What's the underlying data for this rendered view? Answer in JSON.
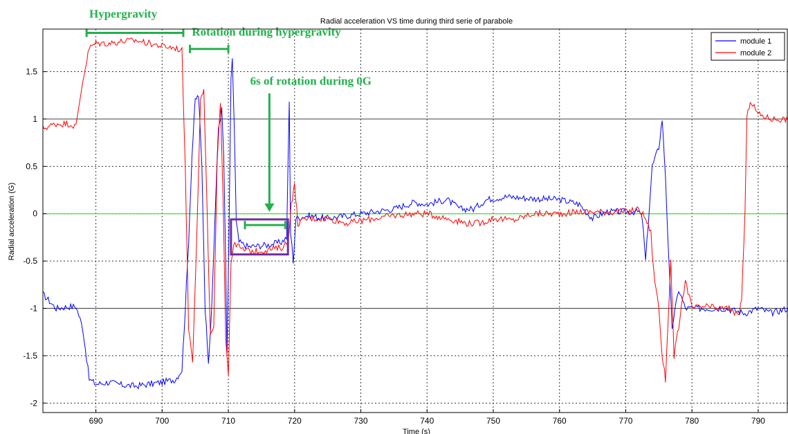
{
  "chart_data": {
    "type": "line",
    "title": "Radial acceleration VS time during third serie of parabole",
    "xlabel": "Time (s)",
    "ylabel": "Radial acceleration (G)",
    "xlim": [
      682,
      794.5
    ],
    "ylim": [
      -2.1,
      1.95
    ],
    "xticks": [
      690,
      700,
      710,
      720,
      730,
      740,
      750,
      760,
      770,
      780,
      790
    ],
    "yticks": [
      -2,
      -1.5,
      -1,
      -0.5,
      0,
      0.5,
      1,
      1.5
    ],
    "grid": true,
    "legend_position": "top-right",
    "reference_lines": [
      {
        "y": 0,
        "color": "#33ee33"
      },
      {
        "y": 1,
        "color": "#555555"
      },
      {
        "y": -1,
        "color": "#555555"
      }
    ],
    "series": [
      {
        "name": "module 1",
        "color": "#0000ff",
        "points": [
          [
            682,
            -0.85
          ],
          [
            684,
            -1.0
          ],
          [
            686,
            -0.98
          ],
          [
            687,
            -0.98
          ],
          [
            688,
            -1.2
          ],
          [
            689,
            -1.75
          ],
          [
            690,
            -1.8
          ],
          [
            692,
            -1.78
          ],
          [
            694,
            -1.81
          ],
          [
            696,
            -1.82
          ],
          [
            698,
            -1.8
          ],
          [
            700,
            -1.78
          ],
          [
            702,
            -1.75
          ],
          [
            703,
            -1.65
          ],
          [
            703.5,
            -1.0
          ],
          [
            704,
            -0.3
          ],
          [
            704.5,
            0.6
          ],
          [
            705,
            1.2
          ],
          [
            705.5,
            1.25
          ],
          [
            706,
            0.5
          ],
          [
            706.5,
            -1.0
          ],
          [
            707,
            -1.55
          ],
          [
            707.5,
            -1.0
          ],
          [
            708,
            0.0
          ],
          [
            708.5,
            0.9
          ],
          [
            709,
            1.1
          ],
          [
            709.3,
            0.6
          ],
          [
            709.6,
            -0.5
          ],
          [
            709.8,
            -1.5
          ],
          [
            710.1,
            -0.2
          ],
          [
            710.4,
            1.4
          ],
          [
            710.6,
            1.65
          ],
          [
            710.9,
            0.9
          ],
          [
            711.2,
            -0.1
          ],
          [
            711.6,
            -0.3
          ],
          [
            713,
            -0.35
          ],
          [
            716,
            -0.33
          ],
          [
            718,
            -0.3
          ],
          [
            718.8,
            -0.25
          ],
          [
            719.2,
            1.18
          ],
          [
            719.4,
            -0.2
          ],
          [
            719.8,
            -0.5
          ],
          [
            720.2,
            -0.05
          ],
          [
            722,
            -0.02
          ],
          [
            725,
            -0.05
          ],
          [
            730,
            0.0
          ],
          [
            735,
            0.05
          ],
          [
            738,
            0.12
          ],
          [
            740,
            0.1
          ],
          [
            743,
            0.15
          ],
          [
            745,
            0.05
          ],
          [
            747,
            0.05
          ],
          [
            749,
            0.15
          ],
          [
            752,
            0.18
          ],
          [
            756,
            0.16
          ],
          [
            760,
            0.15
          ],
          [
            763,
            0.1
          ],
          [
            764,
            0.02
          ],
          [
            765,
            -0.05
          ],
          [
            767,
            0.02
          ],
          [
            770,
            0.02
          ],
          [
            772,
            0.02
          ],
          [
            772.5,
            -0.05
          ],
          [
            773,
            -0.5
          ],
          [
            774,
            0.5
          ],
          [
            775,
            0.7
          ],
          [
            775.5,
            1.0
          ],
          [
            776,
            0.4
          ],
          [
            776.5,
            -0.5
          ],
          [
            777,
            -1.2
          ],
          [
            778,
            -0.8
          ],
          [
            779,
            -1.0
          ],
          [
            782,
            -1.0
          ],
          [
            785,
            -1.0
          ],
          [
            788,
            -1.05
          ],
          [
            790,
            -1.0
          ],
          [
            792,
            -1.05
          ],
          [
            794.5,
            -1.0
          ]
        ]
      },
      {
        "name": "module 2",
        "color": "#ff0000",
        "points": [
          [
            682,
            0.9
          ],
          [
            684,
            0.95
          ],
          [
            686,
            0.95
          ],
          [
            687,
            0.92
          ],
          [
            688,
            1.4
          ],
          [
            689,
            1.75
          ],
          [
            690,
            1.8
          ],
          [
            692,
            1.8
          ],
          [
            694,
            1.82
          ],
          [
            696,
            1.83
          ],
          [
            698,
            1.8
          ],
          [
            700,
            1.77
          ],
          [
            702,
            1.75
          ],
          [
            703,
            1.72
          ],
          [
            703.5,
            0.5
          ],
          [
            704,
            -1.2
          ],
          [
            704.6,
            -1.55
          ],
          [
            705.2,
            -0.3
          ],
          [
            705.8,
            1.2
          ],
          [
            706.3,
            1.3
          ],
          [
            706.8,
            0.0
          ],
          [
            707.3,
            -1.3
          ],
          [
            707.8,
            -1.2
          ],
          [
            708.3,
            0.5
          ],
          [
            708.8,
            1.2
          ],
          [
            709.2,
            0.2
          ],
          [
            709.6,
            -1.3
          ],
          [
            710,
            -1.7
          ],
          [
            710.4,
            -0.5
          ],
          [
            711,
            -0.3
          ],
          [
            712,
            -0.38
          ],
          [
            714,
            -0.4
          ],
          [
            716,
            -0.38
          ],
          [
            718,
            -0.36
          ],
          [
            719,
            -0.3
          ],
          [
            719.5,
            0.1
          ],
          [
            720,
            0.3
          ],
          [
            720.5,
            -0.1
          ],
          [
            722,
            -0.05
          ],
          [
            725,
            -0.05
          ],
          [
            728,
            -0.1
          ],
          [
            732,
            -0.05
          ],
          [
            735,
            -0.02
          ],
          [
            738,
            0.0
          ],
          [
            740,
            0.0
          ],
          [
            743,
            -0.05
          ],
          [
            746,
            -0.1
          ],
          [
            748,
            -0.1
          ],
          [
            750,
            -0.05
          ],
          [
            753,
            -0.07
          ],
          [
            756,
            0.0
          ],
          [
            760,
            0.0
          ],
          [
            763,
            0.02
          ],
          [
            766,
            0.02
          ],
          [
            770,
            0.02
          ],
          [
            772,
            0.05
          ],
          [
            773,
            -0.05
          ],
          [
            773.8,
            -0.2
          ],
          [
            774.2,
            -0.6
          ],
          [
            775,
            -1.0
          ],
          [
            775.5,
            -1.5
          ],
          [
            776,
            -1.75
          ],
          [
            776.8,
            -0.5
          ],
          [
            777.3,
            -1.5
          ],
          [
            778,
            -1.2
          ],
          [
            779,
            -0.7
          ],
          [
            780,
            -1.0
          ],
          [
            782,
            -0.98
          ],
          [
            784,
            -1.0
          ],
          [
            786,
            -1.0
          ],
          [
            787,
            -1.1
          ],
          [
            787.5,
            -0.9
          ],
          [
            788,
            0.0
          ],
          [
            788.3,
            1.0
          ],
          [
            788.8,
            1.2
          ],
          [
            790,
            1.05
          ],
          [
            792,
            1.0
          ],
          [
            794.5,
            1.0
          ]
        ]
      }
    ],
    "annotations": [
      {
        "text": "Hypergravity",
        "x_range": [
          688.6,
          703.2
        ],
        "y": 1.91,
        "text_x": 689,
        "text_y": 2.07,
        "color": "#22b14c"
      },
      {
        "text": "Rotation during hypergravity",
        "x_range": [
          704.2,
          710.0
        ],
        "y": 1.74,
        "text_x": 704.5,
        "text_y": 1.88,
        "color": "#22b14c"
      },
      {
        "text": "6s of rotation during 0G",
        "x_range": [
          712.5,
          718.6
        ],
        "y": -0.12,
        "text_x": 713.3,
        "text_y": 1.36,
        "color": "#22b14c"
      }
    ],
    "arrow": {
      "x": 716.2,
      "y_start": 1.27,
      "y_end": 0.02,
      "color": "#22b14c"
    },
    "highlight_box": {
      "x_range": [
        710.4,
        719.0
      ],
      "y_range": [
        -0.43,
        -0.06
      ],
      "color": "#7030a0"
    }
  }
}
